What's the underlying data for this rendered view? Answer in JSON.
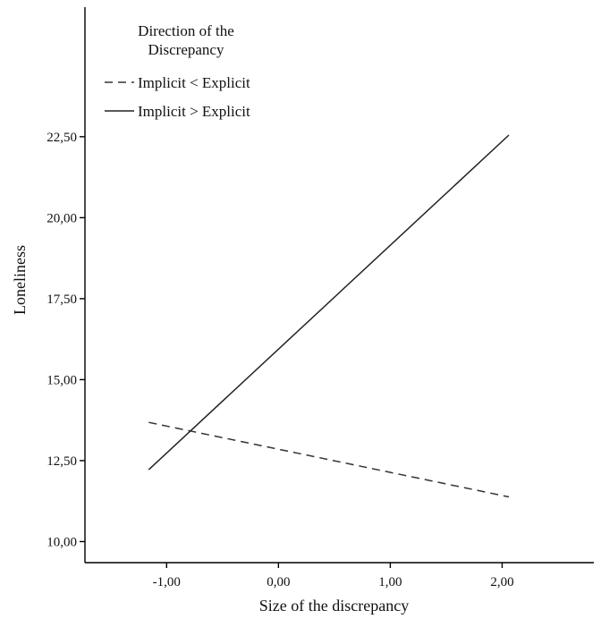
{
  "chart_data": {
    "type": "line",
    "title": "",
    "xlabel": "Size of the discrepancy",
    "ylabel": "Loneliness",
    "xlim": [
      -1.73,
      2.82
    ],
    "ylim": [
      9.35,
      26.5
    ],
    "x_ticks": [
      -1.0,
      0.0,
      1.0,
      2.0
    ],
    "x_tick_labels": [
      "-1,00",
      "0,00",
      "1,00",
      "2,00"
    ],
    "y_ticks": [
      10.0,
      12.5,
      15.0,
      17.5,
      20.0,
      22.5
    ],
    "y_tick_labels": [
      "10,00",
      "12,50",
      "15,00",
      "17,50",
      "20,00",
      "22,50"
    ],
    "grid": false,
    "legend": {
      "title_lines": [
        "Direction of the",
        "Discrepancy"
      ],
      "placement": "top-left"
    },
    "series": [
      {
        "name": "Implicit < Explicit",
        "line_style": "dashed",
        "color": "#333333",
        "x": [
          -1.16,
          2.06
        ],
        "y": [
          13.68,
          11.38
        ]
      },
      {
        "name": "Implicit > Explicit",
        "line_style": "solid",
        "color": "#222222",
        "x": [
          -1.16,
          2.06
        ],
        "y": [
          12.22,
          22.55
        ]
      }
    ]
  }
}
